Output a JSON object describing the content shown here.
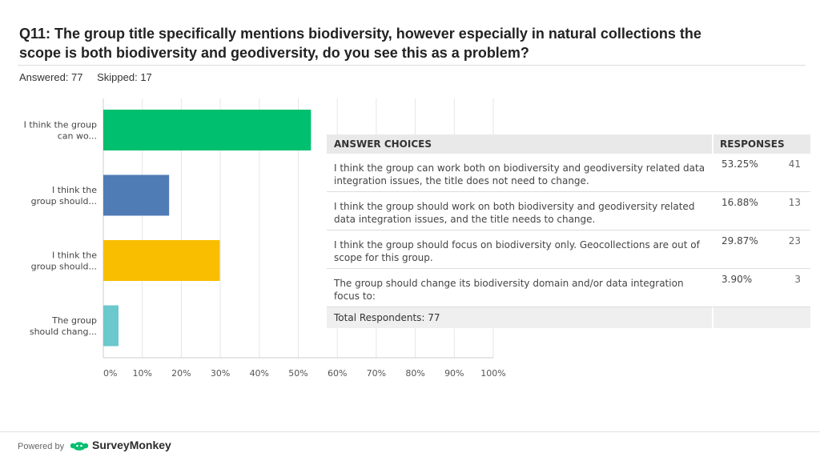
{
  "question": {
    "title": "Q11: The group title specifically mentions biodiversity, however especially in natural collections the scope is both biodiversity and geodiversity, do you see this as a problem?",
    "answered": "Answered: 77",
    "skipped": "Skipped: 17"
  },
  "chart_data": {
    "type": "bar",
    "orientation": "horizontal",
    "categories": [
      "I think the group can wo...",
      "I think the group should...",
      "I think the group should...",
      "The group should chang..."
    ],
    "values": [
      53.25,
      16.88,
      29.87,
      3.9
    ],
    "colors": [
      "#00bf6f",
      "#507cb6",
      "#f9be00",
      "#6bc8cd"
    ],
    "x_ticks": [
      "0%",
      "10%",
      "20%",
      "30%",
      "40%",
      "50%",
      "60%",
      "70%",
      "80%",
      "90%",
      "100%"
    ],
    "xlim": [
      0,
      100
    ],
    "grid": true
  },
  "table": {
    "header_choices": "ANSWER CHOICES",
    "header_responses": "RESPONSES",
    "rows": [
      {
        "choice": "I think the group can work both on biodiversity and geodiversity related data integration issues, the title does not need to change.",
        "percent": "53.25%",
        "count": "41"
      },
      {
        "choice": "I think the group should work on both biodiversity and geodiversity related data integration issues, and the title needs to change.",
        "percent": "16.88%",
        "count": "13"
      },
      {
        "choice": "I think the group should focus on biodiversity only. Geocollections are out of scope for this group.",
        "percent": "29.87%",
        "count": "23"
      },
      {
        "choice": "The group should change its biodiversity domain and/or data integration focus to:",
        "percent": "3.90%",
        "count": "3"
      }
    ],
    "total": "Total Respondents: 77"
  },
  "footer": {
    "powered_by": "Powered by",
    "brand": "SurveyMonkey",
    "brand_color": "#00bf6f"
  }
}
